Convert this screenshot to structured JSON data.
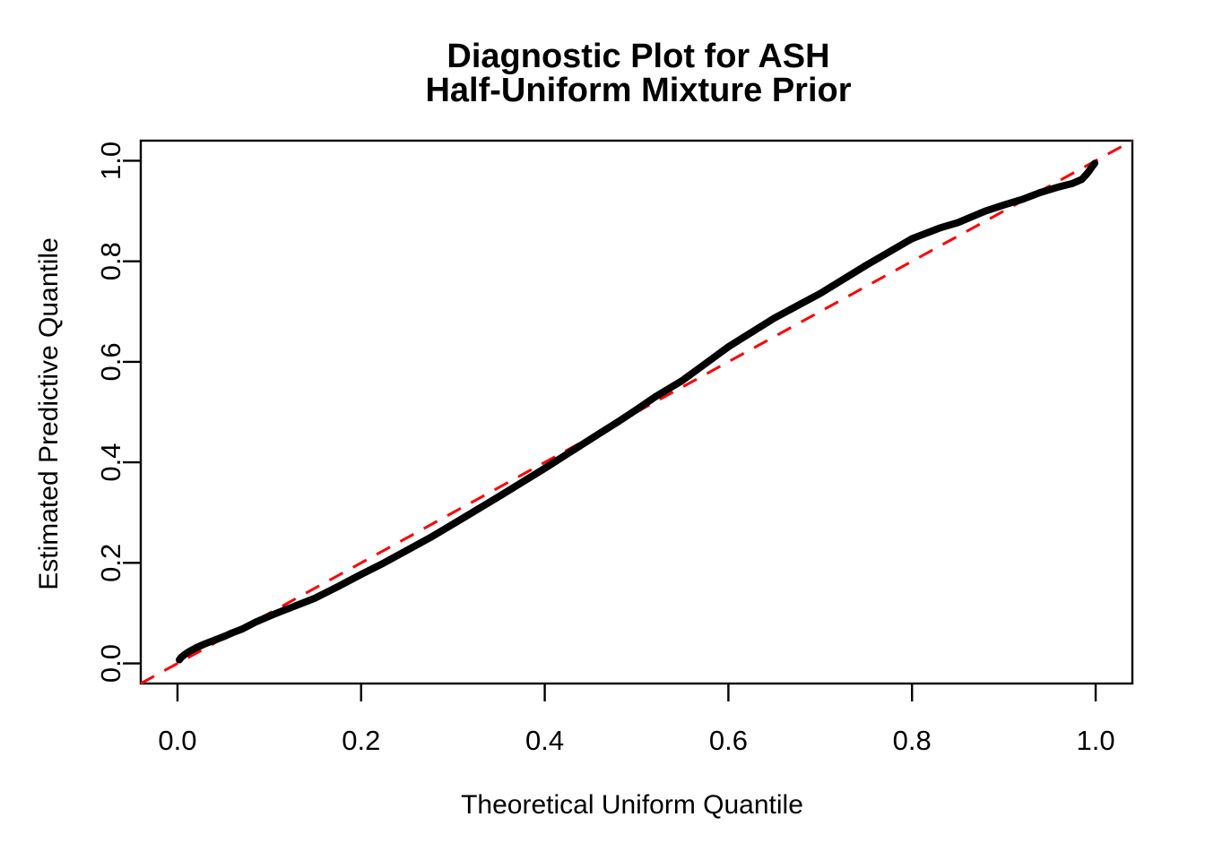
{
  "title": {
    "line1": "Diagnostic Plot for ASH",
    "line2": "Half-Uniform Mixture Prior"
  },
  "axes": {
    "x_label": "Theoretical Uniform Quantile",
    "y_label": "Estimated Predictive Quantile"
  },
  "colors": {
    "curve": "#000000",
    "reference_line": "#FF0000",
    "frame": "#000000",
    "background": "#FFFFFF"
  },
  "chart_data": {
    "type": "line",
    "title": "Diagnostic Plot for ASH\nHalf-Uniform Mixture Prior",
    "xlabel": "Theoretical Uniform Quantile",
    "ylabel": "Estimated Predictive Quantile",
    "xlim": [
      -0.04,
      1.04
    ],
    "ylim": [
      -0.04,
      1.04
    ],
    "grid": false,
    "legend": "none",
    "x_ticks": [
      0.0,
      0.2,
      0.4,
      0.6,
      0.8,
      1.0
    ],
    "y_ticks": [
      0.0,
      0.2,
      0.4,
      0.6,
      0.8,
      1.0
    ],
    "x_tick_labels": [
      "0.0",
      "0.2",
      "0.4",
      "0.6",
      "0.8",
      "1.0"
    ],
    "y_tick_labels": [
      "0.0",
      "0.2",
      "0.4",
      "0.6",
      "0.8",
      "1.0"
    ],
    "series": [
      {
        "name": "estimated-predictive-quantile-curve",
        "type": "line",
        "style": "solid",
        "color": "#000000",
        "width": 8,
        "points": [
          [
            0.002,
            0.007
          ],
          [
            0.004,
            0.012
          ],
          [
            0.008,
            0.018
          ],
          [
            0.013,
            0.024
          ],
          [
            0.02,
            0.031
          ],
          [
            0.03,
            0.039
          ],
          [
            0.04,
            0.046
          ],
          [
            0.05,
            0.053
          ],
          [
            0.06,
            0.061
          ],
          [
            0.07,
            0.068
          ],
          [
            0.085,
            0.082
          ],
          [
            0.1,
            0.094
          ],
          [
            0.112,
            0.103
          ],
          [
            0.125,
            0.112
          ],
          [
            0.15,
            0.13
          ],
          [
            0.175,
            0.153
          ],
          [
            0.2,
            0.177
          ],
          [
            0.225,
            0.2
          ],
          [
            0.25,
            0.225
          ],
          [
            0.275,
            0.25
          ],
          [
            0.3,
            0.277
          ],
          [
            0.35,
            0.332
          ],
          [
            0.4,
            0.388
          ],
          [
            0.43,
            0.423
          ],
          [
            0.46,
            0.458
          ],
          [
            0.48,
            0.481
          ],
          [
            0.5,
            0.505
          ],
          [
            0.52,
            0.53
          ],
          [
            0.55,
            0.563
          ],
          [
            0.58,
            0.603
          ],
          [
            0.6,
            0.63
          ],
          [
            0.65,
            0.687
          ],
          [
            0.7,
            0.736
          ],
          [
            0.75,
            0.792
          ],
          [
            0.8,
            0.845
          ],
          [
            0.83,
            0.866
          ],
          [
            0.85,
            0.877
          ],
          [
            0.88,
            0.9
          ],
          [
            0.9,
            0.912
          ],
          [
            0.92,
            0.923
          ],
          [
            0.94,
            0.937
          ],
          [
            0.96,
            0.948
          ],
          [
            0.975,
            0.955
          ],
          [
            0.985,
            0.963
          ],
          [
            0.99,
            0.973
          ],
          [
            0.993,
            0.98
          ],
          [
            0.996,
            0.988
          ],
          [
            0.999,
            0.995
          ]
        ]
      },
      {
        "name": "identity-reference-line",
        "type": "line",
        "style": "dashed",
        "color": "#FF0000",
        "width": 3,
        "points": [
          [
            -0.04,
            -0.04
          ],
          [
            1.04,
            1.04
          ]
        ]
      }
    ]
  }
}
